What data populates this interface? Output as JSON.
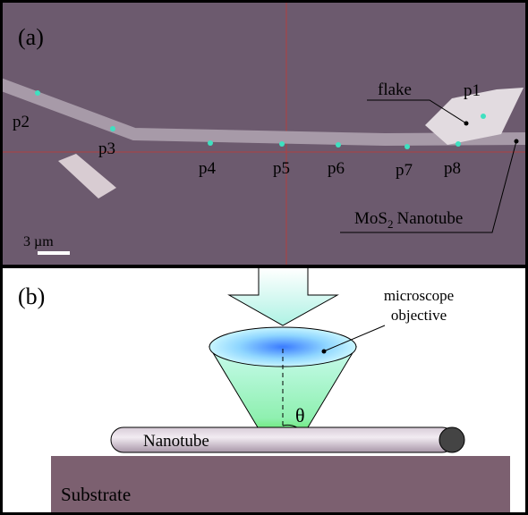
{
  "panel_a": {
    "label": "(a)",
    "points": [
      "p1",
      "p2",
      "p3",
      "p4",
      "p5",
      "p6",
      "p7",
      "p8"
    ],
    "flake_label": "flake",
    "nanotube_label": {
      "base": "MoS",
      "subscript": "2",
      "rest": "Nanotube"
    },
    "scale_bar": "3 µm"
  },
  "panel_b": {
    "label": "(b)",
    "objective_label": [
      "microscope",
      "objective"
    ],
    "angle": "θ",
    "nanotube": "Nanotube",
    "substrate": "Substrate"
  }
}
